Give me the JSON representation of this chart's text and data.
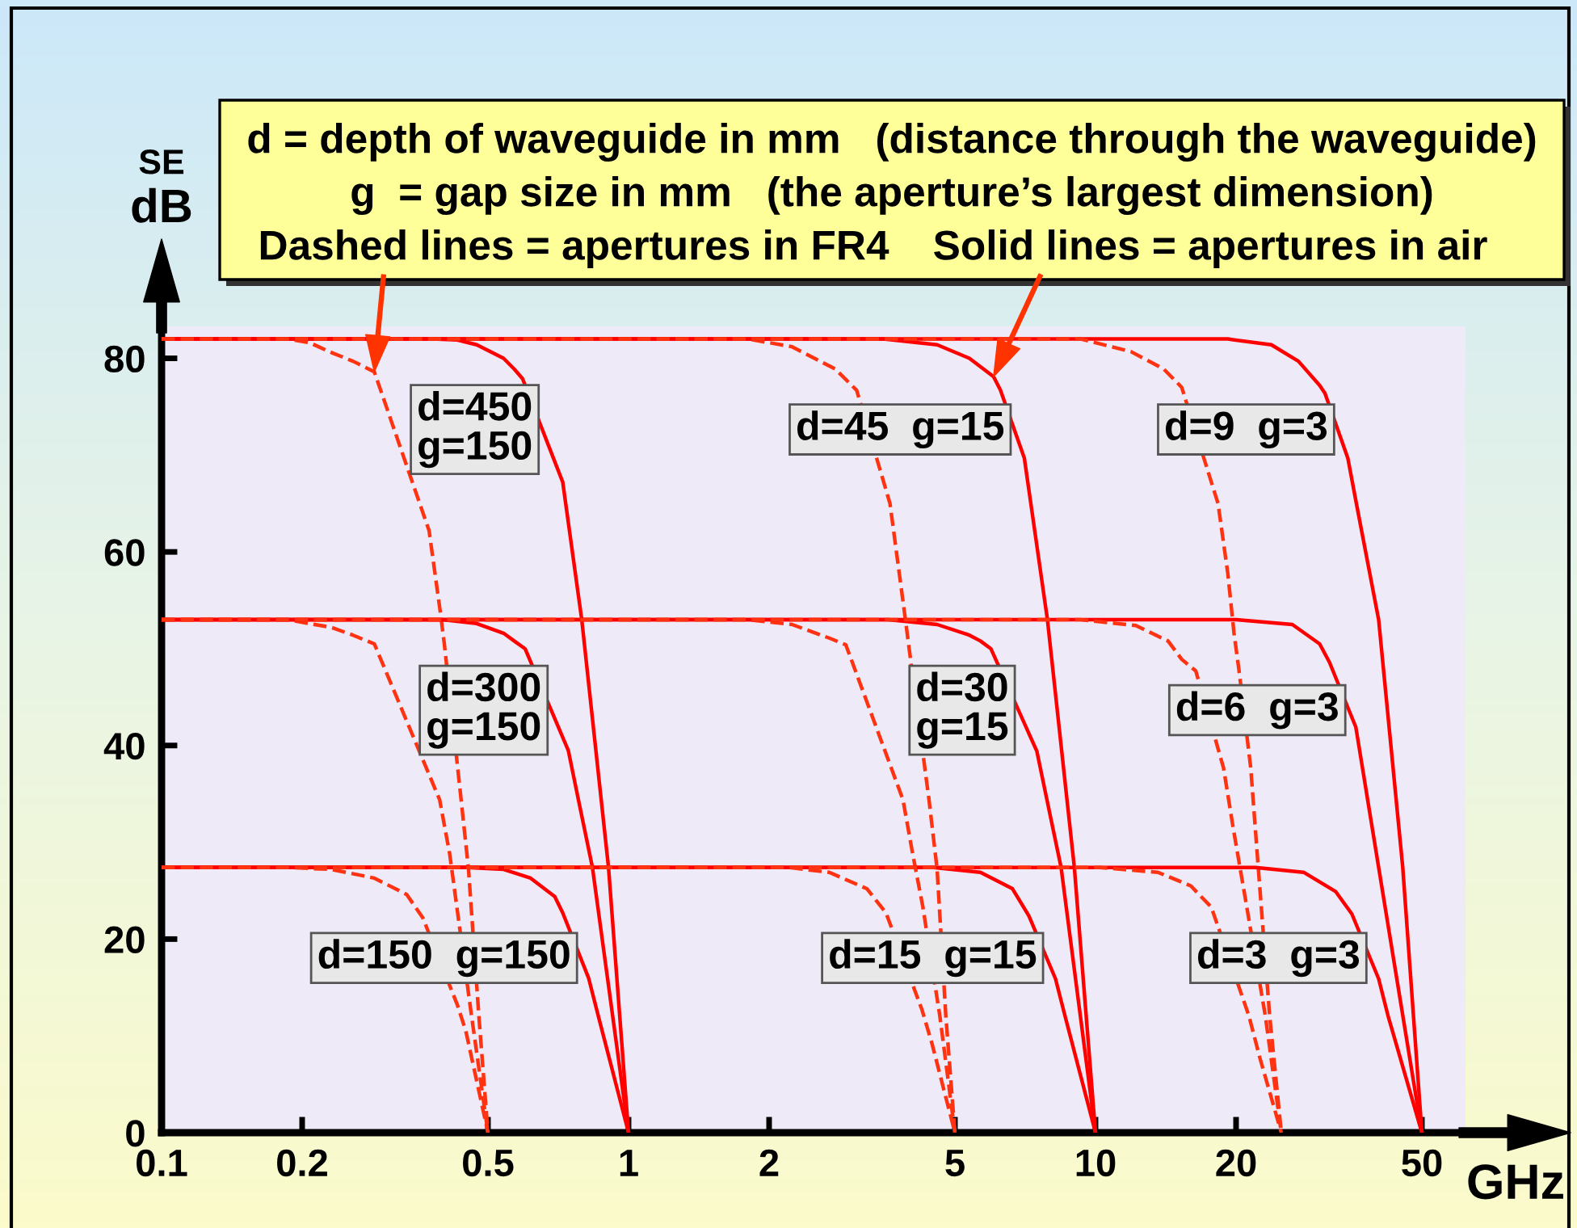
{
  "chart_data": {
    "type": "line",
    "xlabel": "GHz",
    "ylabel": "SE\ndB",
    "log": "x",
    "xlim": [
      0.1,
      62
    ],
    "ylim": [
      0,
      83.3
    ],
    "xticks": [
      0.1,
      0.2,
      0.5,
      1,
      2,
      5,
      10,
      20,
      50
    ],
    "yticks": [
      0,
      20,
      40,
      60,
      80
    ],
    "series": [
      {
        "name": "d=450\ng=150",
        "color": "#ff0000",
        "line_style": "solid",
        "x": [
          0.1,
          0.38,
          0.43,
          0.473,
          0.54,
          0.569,
          0.593,
          0.723,
          0.794,
          0.906,
          1
        ],
        "values": [
          82,
          82,
          81.9,
          81.4,
          80,
          78.9,
          77.9,
          67.2,
          53,
          27.4,
          0
        ]
      },
      {
        "color": "#ff3311",
        "line_style": "dashed",
        "x": [
          0.1,
          0.186,
          0.208,
          0.231,
          0.257,
          0.2855,
          0.374,
          0.395,
          0.4032,
          0.438,
          0.4543,
          0.478,
          0.5
        ],
        "values": [
          82,
          82,
          81.6,
          80.6,
          79.7,
          78.6,
          62.2,
          53.9,
          50.5,
          34.4,
          27.2,
          12.1,
          0
        ]
      },
      {
        "name": "d=300\ng=150",
        "color": "#ff0000",
        "line_style": "solid",
        "x": [
          0.1,
          0.4,
          0.473,
          0.54,
          0.569,
          0.6004,
          0.743,
          0.781,
          0.837,
          1
        ],
        "values": [
          53,
          53,
          52.6,
          51.6,
          50.8,
          50,
          39.5,
          34.4,
          27.4,
          0
        ]
      },
      {
        "color": "#ff3311",
        "line_style": "dashed",
        "x": [
          0.1,
          0.186,
          0.231,
          0.257,
          0.2855,
          0.394,
          0.414,
          0.461,
          0.5
        ],
        "values": [
          53,
          53,
          52.2,
          51.4,
          50.5,
          34.4,
          28.8,
          12.1,
          0
        ]
      },
      {
        "name": "d=150  g=150",
        "color": "#ff0000",
        "line_style": "solid",
        "x": [
          0.1,
          0.45,
          0.54,
          0.617,
          0.695,
          0.723,
          0.821,
          0.861,
          1
        ],
        "values": [
          27.4,
          27.4,
          27.2,
          26.3,
          24.4,
          22.7,
          16,
          12.1,
          0
        ]
      },
      {
        "color": "#ff3311",
        "line_style": "dashed",
        "x": [
          0.1,
          0.186,
          0.231,
          0.2855,
          0.335,
          0.3626,
          0.43,
          0.4483,
          0.5
        ],
        "values": [
          27.4,
          27.4,
          27.2,
          26.3,
          24.6,
          22.2,
          13.2,
          10.5,
          0
        ]
      },
      {
        "name": "d=45  g=15",
        "color": "#ff0000",
        "line_style": "solid",
        "x": [
          0.1,
          3.51,
          4.58,
          5.37,
          6.05,
          6.26,
          7.04,
          7.27,
          7.89,
          9.01,
          10
        ],
        "values": [
          82,
          82,
          81.4,
          80,
          78.1,
          76.7,
          69.7,
          65,
          53,
          27.4,
          0
        ]
      },
      {
        "color": "#ff3311",
        "line_style": "dashed",
        "x": [
          0.1,
          1.8,
          2.24,
          2.77,
          3.08,
          3.63,
          3.91,
          3.99,
          4.4,
          4.58,
          4.78,
          5
        ],
        "values": [
          82,
          82,
          81.2,
          78.9,
          76.7,
          65,
          53.3,
          50,
          34.4,
          27.2,
          12.1,
          0
        ]
      },
      {
        "name": "d=30\ng=15",
        "color": "#ff0000",
        "line_style": "solid",
        "x": [
          0.1,
          3.6,
          4.58,
          5.37,
          5.67,
          5.97,
          7.49,
          7.87,
          8.44,
          10
        ],
        "values": [
          53,
          53,
          52.5,
          51.4,
          50.8,
          50,
          39.4,
          34.4,
          27.4,
          0
        ]
      },
      {
        "color": "#ff3311",
        "line_style": "dashed",
        "x": [
          0.1,
          1.8,
          2.24,
          2.69,
          2.92,
          3.87,
          4.06,
          4.27,
          4.64,
          5
        ],
        "values": [
          53,
          53,
          52.5,
          51.1,
          50.4,
          34.4,
          28.8,
          23.3,
          12.1,
          0
        ]
      },
      {
        "name": "d=15  g=15",
        "color": "#ff0000",
        "line_style": "solid",
        "x": [
          0.1,
          4.5,
          5.67,
          6.64,
          7.2,
          8.21,
          8.6,
          10
        ],
        "values": [
          27.4,
          27.4,
          26.9,
          25.2,
          22.4,
          15.9,
          12.1,
          0
        ]
      },
      {
        "color": "#ff3311",
        "line_style": "dashed",
        "x": [
          0.1,
          2.2,
          2.69,
          3.24,
          3.56,
          4.25,
          4.46,
          5
        ],
        "values": [
          27.4,
          27.4,
          26.9,
          25.2,
          22.7,
          12.7,
          9.3,
          0
        ]
      },
      {
        "name": "d=9  g=3",
        "color": "#ff0000",
        "line_style": "solid",
        "x": [
          0.1,
          19.2,
          23.8,
          27.2,
          30.2,
          31,
          34.7,
          36.2,
          40.4,
          45.5,
          50
        ],
        "values": [
          82,
          82,
          81.4,
          79.7,
          77.2,
          76.4,
          69.7,
          65,
          53,
          27.4,
          0
        ]
      },
      {
        "color": "#ff3311",
        "line_style": "dashed",
        "x": [
          0.1,
          9.3,
          11.9,
          14,
          15.3,
          18.3,
          19.2,
          19.8,
          20.3,
          21.5,
          22.2,
          23.6,
          25
        ],
        "values": [
          82,
          82,
          80.7,
          78.9,
          77,
          65,
          57.8,
          51.6,
          47.7,
          37.7,
          28.8,
          12.1,
          0
        ]
      },
      {
        "name": "d=6  g=3",
        "color": "#ff0000",
        "line_style": "solid",
        "x": [
          0.1,
          20,
          26.4,
          30.2,
          31.7,
          36.1,
          37.3,
          40.4,
          50
        ],
        "values": [
          53,
          53,
          52.5,
          50.5,
          48.6,
          41.9,
          37.7,
          27.4,
          0
        ]
      },
      {
        "color": "#ff3311",
        "line_style": "dashed",
        "x": [
          0.1,
          9.3,
          12.2,
          14.3,
          15.3,
          16.4,
          18.8,
          19.7,
          20.9,
          23.1,
          25
        ],
        "values": [
          53,
          53,
          52.4,
          50.8,
          48.9,
          47.7,
          37.7,
          31.6,
          24.4,
          12.1,
          0
        ]
      },
      {
        "name": "d=3  g=3",
        "color": "#ff0000",
        "line_style": "solid",
        "x": [
          0.1,
          22,
          27.9,
          32.7,
          35.4,
          40.4,
          42.3,
          50
        ],
        "values": [
          27.4,
          27.4,
          26.9,
          24.9,
          22.6,
          15.9,
          12.1,
          0
        ]
      },
      {
        "color": "#ff3311",
        "line_style": "dashed",
        "x": [
          0.1,
          10.2,
          13.6,
          16,
          17.7,
          21.3,
          22.5,
          25
        ],
        "values": [
          27.4,
          27.4,
          26.9,
          25.5,
          23.3,
          12.1,
          7.7,
          0
        ]
      }
    ],
    "annotations": [
      "d = depth of waveguide in mm   (distance through the waveguide)",
      "g  = gap size in mm   (the aperture’s largest dimension)",
      {
        "text": "Dashed lines = apertures in FR4",
        "x": 0.2855,
        "y": 78.6
      },
      {
        "text": "Solid lines = apertures in air",
        "x": 6.05,
        "y": 78.1
      }
    ]
  }
}
